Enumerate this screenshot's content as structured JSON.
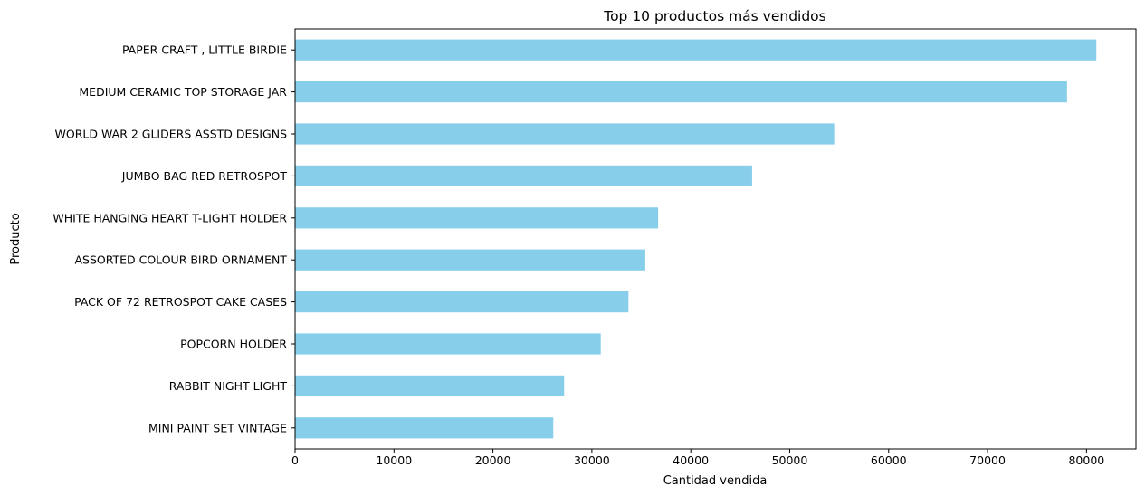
{
  "chart_data": {
    "type": "bar",
    "orientation": "horizontal",
    "title": "Top 10 productos más vendidos",
    "xlabel": "Cantidad vendida",
    "ylabel": "Producto",
    "categories": [
      "PAPER CRAFT , LITTLE BIRDIE",
      "MEDIUM CERAMIC TOP STORAGE JAR",
      "WORLD WAR 2 GLIDERS ASSTD DESIGNS",
      "JUMBO BAG RED RETROSPOT",
      "WHITE HANGING HEART T-LIGHT HOLDER",
      "ASSORTED COLOUR BIRD ORNAMENT",
      "PACK OF 72 RETROSPOT CAKE CASES",
      "POPCORN HOLDER",
      "RABBIT NIGHT LIGHT",
      "MINI PAINT SET VINTAGE "
    ],
    "values": [
      80995,
      78033,
      54500,
      46200,
      36700,
      35400,
      33700,
      30900,
      27200,
      26100
    ],
    "xlim": [
      0,
      85000
    ],
    "xticks": [
      0,
      10000,
      20000,
      30000,
      40000,
      50000,
      60000,
      70000,
      80000
    ],
    "xtick_labels": [
      "0",
      "10000",
      "20000",
      "30000",
      "40000",
      "50000",
      "60000",
      "70000",
      "80000"
    ],
    "bar_color": "#87ceeb",
    "grid": false,
    "legend": "none"
  }
}
